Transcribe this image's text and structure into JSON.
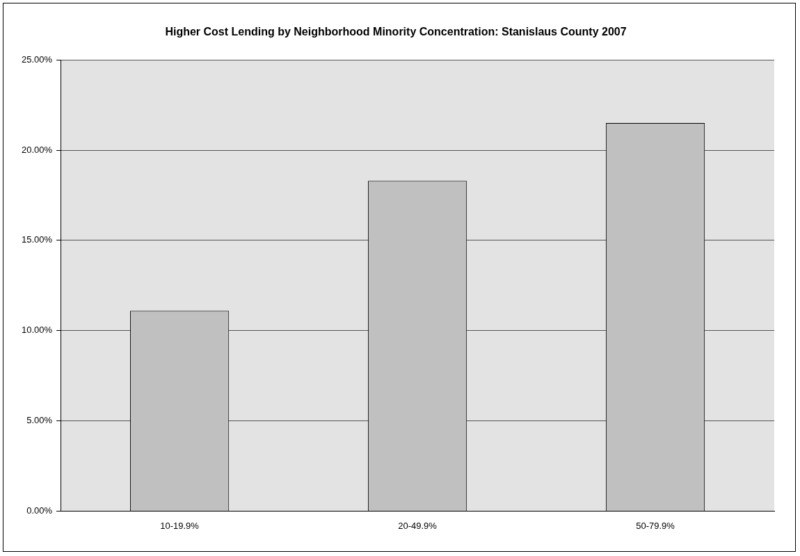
{
  "chart_data": {
    "type": "bar",
    "title": "Higher Cost Lending by Neighborhood Minority Concentration: Stanislaus County 2007",
    "categories": [
      "10-19.9%",
      "20-49.9%",
      "50-79.9%"
    ],
    "values": [
      11.1,
      18.3,
      21.5
    ],
    "color": "#c0c0c0",
    "ylim": [
      0,
      25
    ],
    "yticks": [
      {
        "value": 0,
        "label": "0.00%"
      },
      {
        "value": 5,
        "label": "5.00%"
      },
      {
        "value": 10,
        "label": "10.00%"
      },
      {
        "value": 15,
        "label": "15.00%"
      },
      {
        "value": 20,
        "label": "20.00%"
      },
      {
        "value": 25,
        "label": "25.00%"
      }
    ],
    "grid": "y",
    "legend": false
  }
}
